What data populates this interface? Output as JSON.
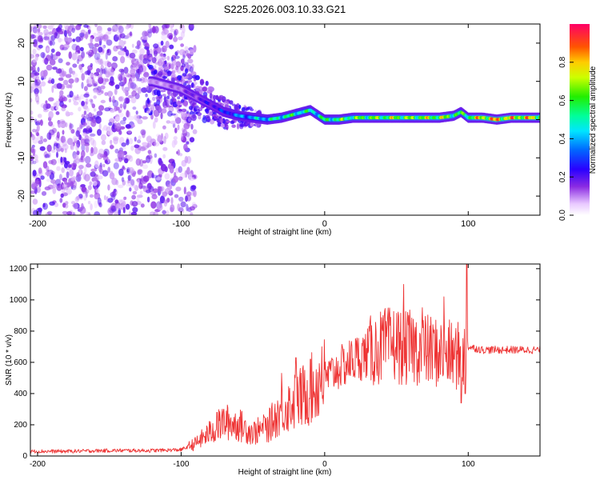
{
  "title": "S225.2026.003.10.33.G21",
  "chart_data": [
    {
      "type": "heatmap",
      "xlabel": "Height of straight line (km)",
      "ylabel": "Frequency (Hz)",
      "xlim": [
        -205,
        150
      ],
      "ylim": [
        -25,
        25
      ],
      "xticks": [
        -200,
        -100,
        0,
        100
      ],
      "yticks": [
        20,
        10,
        0,
        -10,
        -20
      ],
      "colorbar": {
        "label": "Normalized spectral amplitude",
        "range": [
          0.0,
          1.0
        ],
        "ticks": [
          0.0,
          0.2,
          0.4,
          0.6,
          0.8
        ]
      },
      "ridge": {
        "x": [
          -120,
          -110,
          -100,
          -90,
          -80,
          -70,
          -60,
          -50,
          -40,
          -30,
          -20,
          -10,
          0,
          10,
          20,
          30,
          40,
          50,
          60,
          70,
          80,
          90,
          95,
          100,
          110,
          120,
          130,
          140,
          150
        ],
        "frequency": [
          10,
          9,
          8,
          6,
          4,
          2,
          1,
          0.5,
          0,
          0.5,
          1.5,
          2.5,
          0,
          0,
          0.5,
          0.5,
          0.5,
          0.5,
          0.5,
          0.5,
          0.5,
          1,
          2,
          0.5,
          0.5,
          0,
          0.5,
          0.5,
          0.5
        ],
        "amplitude": [
          0.1,
          0.12,
          0.15,
          0.2,
          0.25,
          0.3,
          0.4,
          0.45,
          0.5,
          0.6,
          0.6,
          0.55,
          0.6,
          0.65,
          0.65,
          0.7,
          0.7,
          0.75,
          0.7,
          0.75,
          0.75,
          0.7,
          0.6,
          0.7,
          0.85,
          0.9,
          0.85,
          0.85,
          0.85
        ]
      }
    },
    {
      "type": "line",
      "xlabel": "Height of straight line (km)",
      "ylabel": "SNR (10 * v/v)",
      "xlim": [
        -205,
        150
      ],
      "ylim": [
        0,
        1230
      ],
      "xticks": [
        -200,
        -100,
        0,
        100
      ],
      "yticks": [
        0,
        200,
        400,
        600,
        800,
        1000,
        1200
      ],
      "color": "#ee3333",
      "series": [
        {
          "name": "SNR",
          "x": [
            -205,
            -180,
            -150,
            -120,
            -100,
            -90,
            -80,
            -70,
            -60,
            -50,
            -40,
            -30,
            -20,
            -10,
            0,
            10,
            20,
            30,
            40,
            50,
            55,
            60,
            70,
            80,
            90,
            95,
            99,
            100,
            110,
            120,
            130,
            140,
            150
          ],
          "y": [
            30,
            30,
            35,
            35,
            40,
            80,
            150,
            220,
            200,
            150,
            180,
            300,
            350,
            420,
            500,
            560,
            620,
            660,
            700,
            720,
            680,
            700,
            680,
            660,
            640,
            640,
            640,
            700,
            680,
            680,
            680,
            680,
            680
          ],
          "peaks": [
            {
              "x": -75,
              "y": 280
            },
            {
              "x": -42,
              "y": 250
            },
            {
              "x": -30,
              "y": 530
            },
            {
              "x": -20,
              "y": 630
            },
            {
              "x": -10,
              "y": 620
            },
            {
              "x": -2,
              "y": 700
            },
            {
              "x": 55,
              "y": 1100
            },
            {
              "x": 68,
              "y": 950
            },
            {
              "x": 83,
              "y": 1020
            },
            {
              "x": 95,
              "y": 1100
            },
            {
              "x": 99,
              "y": 1230
            }
          ],
          "troughs": [
            {
              "x": 95,
              "y": 340
            },
            {
              "x": 98,
              "y": 400
            }
          ]
        }
      ]
    }
  ]
}
